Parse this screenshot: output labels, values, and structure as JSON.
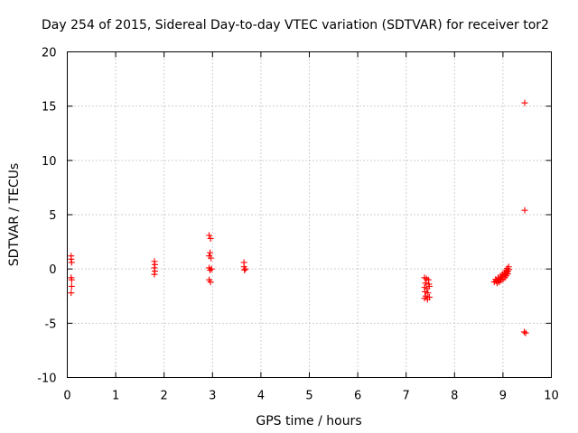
{
  "chart_data": {
    "type": "scatter",
    "title": "Day 254 of 2015, Sidereal Day-to-day VTEC variation (SDTVAR) for receiver tor2",
    "xlabel": "GPS time / hours",
    "ylabel": "SDTVAR / TECUs",
    "xlim": [
      0,
      10
    ],
    "ylim": [
      -10,
      20
    ],
    "xticks": [
      0,
      1,
      2,
      3,
      4,
      5,
      6,
      7,
      8,
      9,
      10
    ],
    "yticks": [
      -10,
      -5,
      0,
      5,
      10,
      15,
      20
    ],
    "grid": true,
    "marker": "plus",
    "color": "#ff0000",
    "series": [
      {
        "name": "SDTVAR",
        "points": [
          [
            0.08,
            1.2
          ],
          [
            0.08,
            0.9
          ],
          [
            0.09,
            0.6
          ],
          [
            0.08,
            -0.8
          ],
          [
            0.09,
            -1.0
          ],
          [
            0.09,
            -1.6
          ],
          [
            0.08,
            -2.2
          ],
          [
            1.8,
            0.7
          ],
          [
            1.81,
            0.4
          ],
          [
            1.8,
            0.1
          ],
          [
            1.81,
            -0.2
          ],
          [
            1.8,
            -0.5
          ],
          [
            2.93,
            3.1
          ],
          [
            2.96,
            2.8
          ],
          [
            2.95,
            1.5
          ],
          [
            2.93,
            1.2
          ],
          [
            2.97,
            1.0
          ],
          [
            2.93,
            0.1
          ],
          [
            2.95,
            -0.1
          ],
          [
            2.98,
            0.0
          ],
          [
            2.93,
            -1.0
          ],
          [
            2.96,
            -1.2
          ],
          [
            3.65,
            0.6
          ],
          [
            3.65,
            0.2
          ],
          [
            3.68,
            0.0
          ],
          [
            3.66,
            -0.1
          ],
          [
            7.38,
            -0.8
          ],
          [
            7.42,
            -0.9
          ],
          [
            7.46,
            -1.0
          ],
          [
            7.4,
            -1.3
          ],
          [
            7.47,
            -1.4
          ],
          [
            7.38,
            -1.7
          ],
          [
            7.43,
            -1.8
          ],
          [
            7.48,
            -1.6
          ],
          [
            7.39,
            -2.1
          ],
          [
            7.45,
            -2.2
          ],
          [
            7.41,
            -2.5
          ],
          [
            7.38,
            -2.7
          ],
          [
            7.44,
            -2.8
          ],
          [
            7.48,
            -2.6
          ],
          [
            8.82,
            -1.2
          ],
          [
            8.86,
            -1.1
          ],
          [
            8.9,
            -1.0
          ],
          [
            8.94,
            -0.9
          ],
          [
            8.97,
            -0.8
          ],
          [
            9.0,
            -0.7
          ],
          [
            9.03,
            -0.55
          ],
          [
            9.06,
            -0.4
          ],
          [
            9.08,
            -0.3
          ],
          [
            9.1,
            -0.2
          ],
          [
            9.12,
            -0.05
          ],
          [
            9.12,
            0.2
          ],
          [
            8.88,
            -1.3
          ],
          [
            8.92,
            -1.2
          ],
          [
            8.96,
            -1.05
          ],
          [
            9.0,
            -0.95
          ],
          [
            9.04,
            -0.8
          ],
          [
            9.07,
            -0.6
          ],
          [
            9.1,
            -0.45
          ],
          [
            8.85,
            -0.95
          ],
          [
            8.9,
            -0.8
          ],
          [
            8.95,
            -0.65
          ],
          [
            8.99,
            -0.5
          ],
          [
            9.03,
            -0.35
          ],
          [
            9.06,
            -0.15
          ],
          [
            9.09,
            0.05
          ],
          [
            9.45,
            15.3
          ],
          [
            9.45,
            5.4
          ],
          [
            9.44,
            -5.8
          ],
          [
            9.47,
            -5.9
          ]
        ]
      }
    ]
  }
}
